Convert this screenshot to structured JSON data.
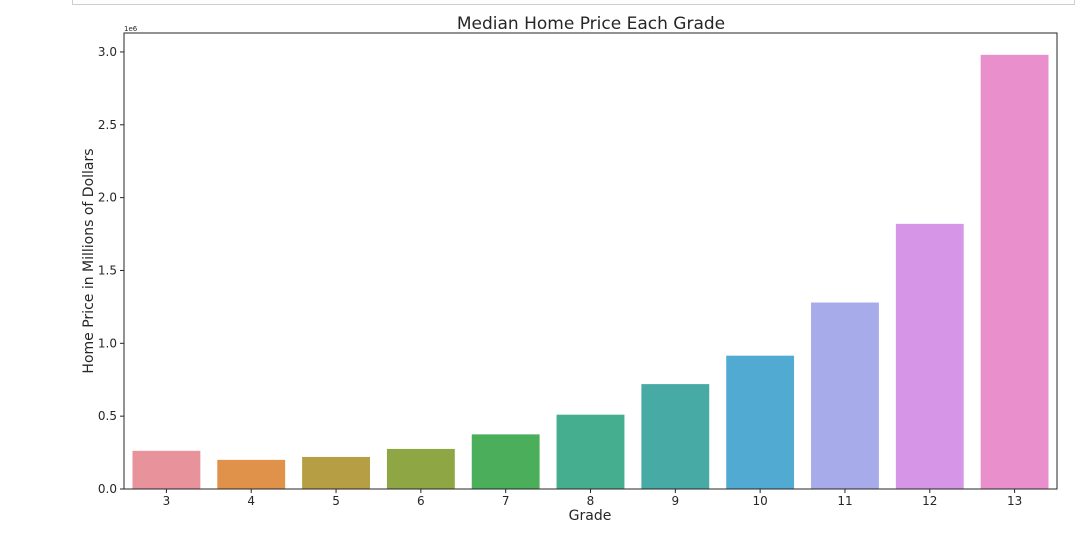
{
  "chart_data": {
    "type": "bar",
    "title": "Median Home Price Each Grade",
    "xlabel": "Grade",
    "ylabel": "Home Price in Millions of Dollars",
    "y_offset_label": "1e6",
    "categories": [
      "3",
      "4",
      "5",
      "6",
      "7",
      "8",
      "9",
      "10",
      "11",
      "12",
      "13"
    ],
    "values": [
      262000,
      200000,
      220000,
      275000,
      375000,
      510000,
      720000,
      915000,
      1280000,
      1820000,
      2980000
    ],
    "colors": [
      "#e8929c",
      "#e0924a",
      "#b69e45",
      "#8ea643",
      "#4aae5a",
      "#45ae8e",
      "#47aaa4",
      "#51aad2",
      "#a7abea",
      "#d695e6",
      "#e990cc"
    ],
    "y_ticks": [
      0,
      500000,
      1000000,
      1500000,
      2000000,
      2500000,
      3000000
    ],
    "y_tick_labels": [
      "0.0",
      "0.5",
      "1.0",
      "1.5",
      "2.0",
      "2.5",
      "3.0"
    ],
    "ylim": [
      0,
      3130000
    ],
    "grid": false,
    "legend": "none"
  }
}
